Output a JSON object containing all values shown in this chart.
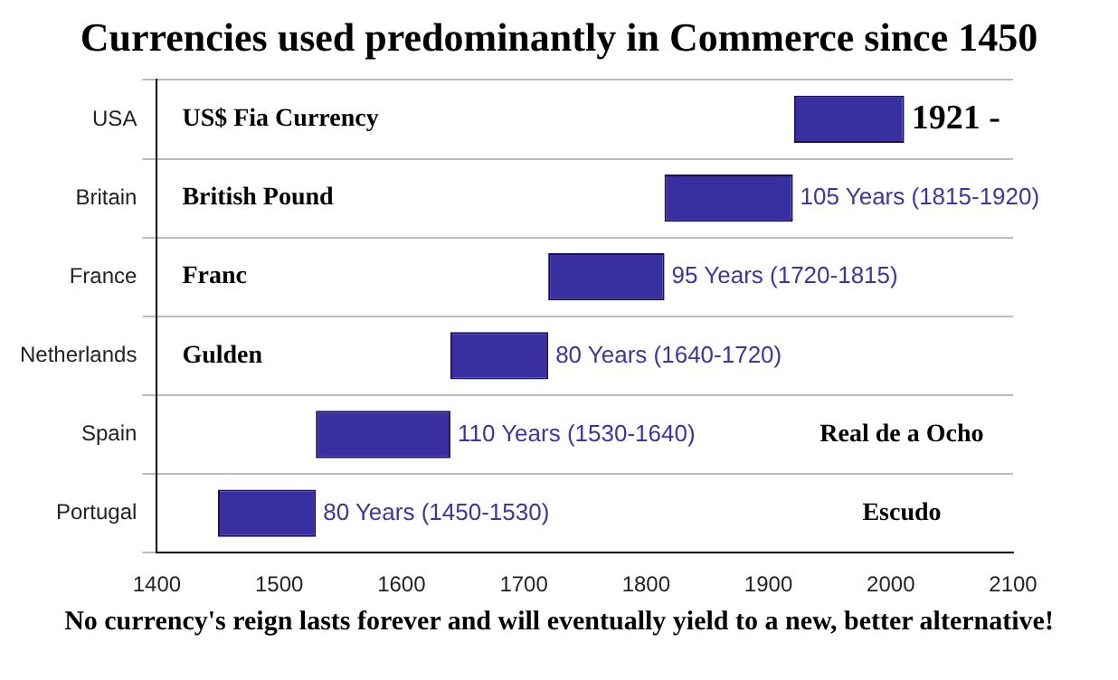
{
  "chart_data": {
    "type": "bar",
    "orientation": "horizontal",
    "title": "Currencies used predominantly in Commerce since 1450",
    "categories": [
      "USA",
      "Britain",
      "France",
      "Netherlands",
      "Spain",
      "Portugal"
    ],
    "base": [
      1921,
      1815,
      1720,
      1640,
      1530,
      1450
    ],
    "values": [
      90,
      105,
      95,
      80,
      110,
      80
    ],
    "color": "#3a2fa0",
    "value_labels": [
      null,
      "105 Years (1815-1920)",
      "95 Years (1720-1815)",
      "80 Years (1640-1720)",
      "110 Years (1530-1640)",
      "80 Years (1450-1530)"
    ],
    "xlim": [
      1400,
      2100
    ],
    "xticks": [
      1400,
      1500,
      1600,
      1700,
      1800,
      1900,
      2000,
      2100
    ],
    "grid": "y",
    "legend": false,
    "annotations": [
      "US$ Fia Currency",
      "British Pound",
      "Franc",
      "Gulden",
      "Real de a Ocho",
      "Escudo",
      {
        "text": "1921 -",
        "x": 2011,
        "y": "USA"
      },
      "No currency's reign lasts forever and will eventually yield to a new, better alternative!"
    ]
  }
}
